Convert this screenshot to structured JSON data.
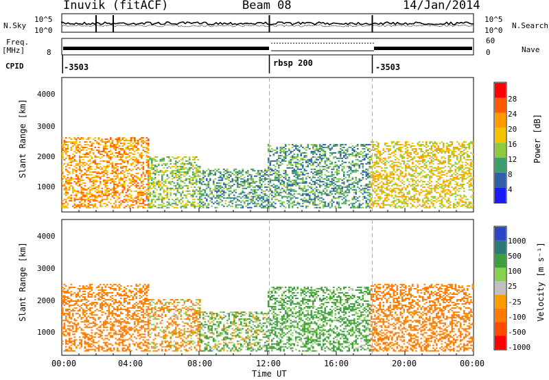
{
  "header": {
    "station": "Inuvik (fitACF)",
    "beam": "Beam 08",
    "date": "14/Jan/2014"
  },
  "panel_labels": {
    "nsky": "N.Sky",
    "nsearch": "N.Search",
    "freq_line1": "Freq.",
    "freq_line2": "[MHz]",
    "nave": "Nave",
    "cpid": "CPID"
  },
  "ticks": {
    "noise_top": "10^5",
    "noise_bottom": "10^0",
    "noise_right_top": "10^5",
    "noise_right_bottom": "10^0",
    "freq_left": [
      "8"
    ],
    "freq_right": [
      "60",
      "0"
    ],
    "range": [
      "1000",
      "2000",
      "3000",
      "4000"
    ],
    "power_scale": [
      "28",
      "24",
      "20",
      "16",
      "12",
      "8",
      "4"
    ],
    "velocity_scale": [
      "1000",
      "500",
      "100",
      "25",
      "-25",
      "-100",
      "-500",
      "-1000"
    ],
    "time": [
      "00:00",
      "04:00",
      "08:00",
      "12:00",
      "16:00",
      "20:00",
      "00:00"
    ]
  },
  "cpid_values": [
    "-3503",
    "rbsp 200",
    "-3503"
  ],
  "axis_labels": {
    "range_upper": "Slant Range [km]",
    "range_lower": "Slant Range [km]",
    "power": "Power [dB]",
    "velocity": "Velocity [m s⁻¹]",
    "time": "Time UT"
  },
  "colors": {
    "power": [
      "#ff0000",
      "#ff5a00",
      "#ff9a00",
      "#f5c400",
      "#8ccc3c",
      "#3d9e6e",
      "#2f5fa8",
      "#1a1aff"
    ],
    "velocity": [
      "#2a45c8",
      "#2a7a7a",
      "#3d9e3d",
      "#86d24a",
      "#c0c0c0",
      "#ff9a00",
      "#ff7a00",
      "#ff4a00",
      "#ff0000"
    ]
  },
  "chart_data": [
    {
      "type": "heatmap",
      "title": "Power",
      "xlabel": "Time UT",
      "ylabel": "Slant Range [km]",
      "xlim": [
        "00:00",
        "24:00"
      ],
      "ylim": [
        180,
        4600
      ],
      "zlabel": "Power [dB]",
      "zlim": [
        0,
        32
      ],
      "segments": [
        {
          "t0": "00:00",
          "t1": "05:00",
          "range_min": 300,
          "range_max": 2600,
          "dominant_power_dB": 24
        },
        {
          "t0": "05:00",
          "t1": "08:00",
          "range_min": 300,
          "range_max": 2000,
          "dominant_power_dB": 16
        },
        {
          "t0": "08:00",
          "t1": "12:00",
          "range_min": 300,
          "range_max": 1600,
          "dominant_power_dB": 12
        },
        {
          "t0": "12:00",
          "t1": "18:00",
          "range_min": 300,
          "range_max": 2400,
          "dominant_power_dB": 12
        },
        {
          "t0": "18:00",
          "t1": "24:00",
          "range_min": 300,
          "range_max": 2500,
          "dominant_power_dB": 20
        }
      ]
    },
    {
      "type": "heatmap",
      "title": "Velocity",
      "xlabel": "Time UT",
      "ylabel": "Slant Range [km]",
      "xlim": [
        "00:00",
        "24:00"
      ],
      "ylim": [
        180,
        4600
      ],
      "zlabel": "Velocity [m s⁻¹]",
      "zlim": [
        -1000,
        1000
      ],
      "segments": [
        {
          "t0": "00:00",
          "t1": "05:00",
          "range_min": 300,
          "range_max": 2500,
          "dominant_velocity": -250
        },
        {
          "t0": "05:00",
          "t1": "08:00",
          "range_min": 300,
          "range_max": 2000,
          "dominant_velocity": -100
        },
        {
          "t0": "08:00",
          "t1": "12:00",
          "range_min": 300,
          "range_max": 1600,
          "dominant_velocity": 100
        },
        {
          "t0": "12:00",
          "t1": "18:00",
          "range_min": 300,
          "range_max": 2400,
          "dominant_velocity": 200
        },
        {
          "t0": "18:00",
          "t1": "24:00",
          "range_min": 300,
          "range_max": 2500,
          "dominant_velocity": -250
        }
      ]
    }
  ]
}
